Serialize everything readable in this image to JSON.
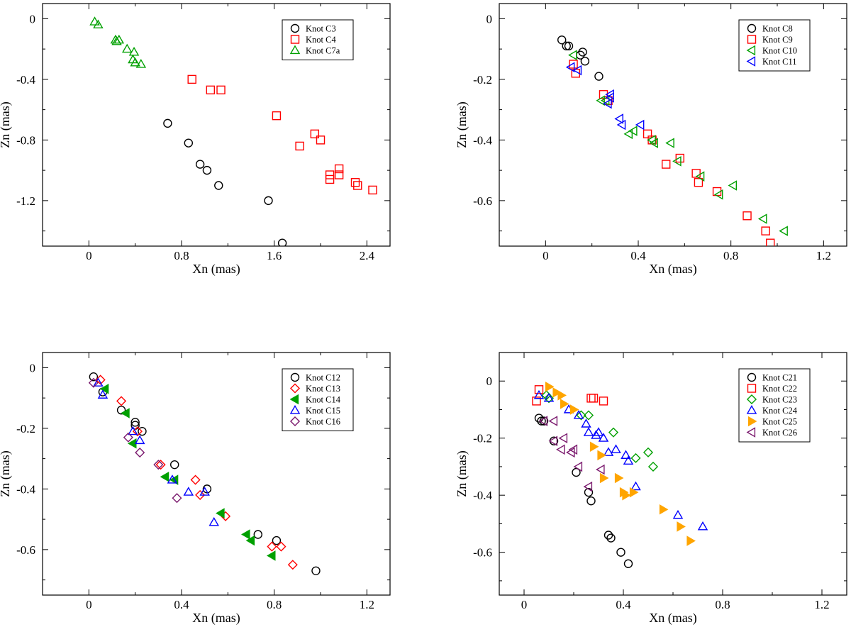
{
  "chart_data": [
    {
      "type": "scatter",
      "xlabel": "Xn (mas)",
      "ylabel": "Zn (mas)",
      "xlim": [
        -0.4,
        2.6
      ],
      "ylim": [
        -1.5,
        0.1
      ],
      "xticks": [
        0,
        0.8,
        1.6,
        2.4
      ],
      "yticks": [
        0,
        -0.4,
        -0.8,
        -1.2
      ],
      "xtick_labels": [
        "0",
        "0.8",
        "1.6",
        "2.4"
      ],
      "ytick_labels": [
        "0",
        "-0.4",
        "-0.8",
        "-1.2"
      ],
      "legend_position": "top-right",
      "series": [
        {
          "name": "Knot C3",
          "marker": "circle",
          "color": "#000000",
          "filled": false,
          "points": [
            [
              0.68,
              -0.69
            ],
            [
              0.86,
              -0.82
            ],
            [
              0.96,
              -0.96
            ],
            [
              1.02,
              -1.0
            ],
            [
              1.12,
              -1.1
            ],
            [
              1.55,
              -1.2
            ],
            [
              1.67,
              -1.48
            ]
          ]
        },
        {
          "name": "Knot C4",
          "marker": "square",
          "color": "#ff0000",
          "filled": false,
          "points": [
            [
              0.89,
              -0.4
            ],
            [
              1.05,
              -0.47
            ],
            [
              1.14,
              -0.47
            ],
            [
              1.62,
              -0.64
            ],
            [
              1.82,
              -0.84
            ],
            [
              1.95,
              -0.76
            ],
            [
              2.0,
              -0.8
            ],
            [
              2.08,
              -1.03
            ],
            [
              2.08,
              -1.06
            ],
            [
              2.16,
              -0.99
            ],
            [
              2.16,
              -1.03
            ],
            [
              2.3,
              -1.08
            ],
            [
              2.32,
              -1.1
            ],
            [
              2.45,
              -1.13
            ]
          ]
        },
        {
          "name": "Knot C7a",
          "marker": "triangle-up",
          "color": "#00a000",
          "filled": false,
          "points": [
            [
              0.05,
              -0.02
            ],
            [
              0.08,
              -0.04
            ],
            [
              0.23,
              -0.14
            ],
            [
              0.24,
              -0.15
            ],
            [
              0.26,
              -0.14
            ],
            [
              0.33,
              -0.2
            ],
            [
              0.39,
              -0.22
            ],
            [
              0.38,
              -0.27
            ],
            [
              0.4,
              -0.29
            ],
            [
              0.45,
              -0.3
            ]
          ]
        }
      ]
    },
    {
      "type": "scatter",
      "xlabel": "Xn (mas)",
      "ylabel": "Zn (mas)",
      "xlim": [
        -0.2,
        1.3
      ],
      "ylim": [
        -0.75,
        0.05
      ],
      "xticks": [
        0,
        0.4,
        0.8,
        1.2
      ],
      "yticks": [
        0,
        -0.2,
        -0.4,
        -0.6
      ],
      "xtick_labels": [
        "0",
        "0.4",
        "0.8",
        "1.2"
      ],
      "ytick_labels": [
        "0",
        "-0.2",
        "-0.4",
        "-0.6"
      ],
      "legend_position": "top-right",
      "series": [
        {
          "name": "Knot C8",
          "marker": "circle",
          "color": "#000000",
          "filled": false,
          "points": [
            [
              0.07,
              -0.07
            ],
            [
              0.09,
              -0.09
            ],
            [
              0.1,
              -0.09
            ],
            [
              0.15,
              -0.12
            ],
            [
              0.16,
              -0.11
            ],
            [
              0.17,
              -0.14
            ],
            [
              0.23,
              -0.19
            ]
          ]
        },
        {
          "name": "Knot C9",
          "marker": "square",
          "color": "#ff0000",
          "filled": false,
          "points": [
            [
              0.12,
              -0.15
            ],
            [
              0.13,
              -0.18
            ],
            [
              0.25,
              -0.25
            ],
            [
              0.27,
              -0.27
            ],
            [
              0.44,
              -0.38
            ],
            [
              0.46,
              -0.4
            ],
            [
              0.52,
              -0.48
            ],
            [
              0.58,
              -0.46
            ],
            [
              0.65,
              -0.51
            ],
            [
              0.66,
              -0.54
            ],
            [
              0.74,
              -0.57
            ],
            [
              0.87,
              -0.65
            ],
            [
              0.95,
              -0.7
            ],
            [
              0.97,
              -0.74
            ]
          ]
        },
        {
          "name": "Knot C10",
          "marker": "triangle-left",
          "color": "#00a000",
          "filled": false,
          "points": [
            [
              0.12,
              -0.12
            ],
            [
              0.24,
              -0.27
            ],
            [
              0.26,
              -0.27
            ],
            [
              0.36,
              -0.38
            ],
            [
              0.38,
              -0.37
            ],
            [
              0.46,
              -0.4
            ],
            [
              0.47,
              -0.41
            ],
            [
              0.54,
              -0.41
            ],
            [
              0.57,
              -0.47
            ],
            [
              0.67,
              -0.52
            ],
            [
              0.75,
              -0.58
            ],
            [
              0.81,
              -0.55
            ],
            [
              0.94,
              -0.66
            ],
            [
              1.03,
              -0.7
            ]
          ]
        },
        {
          "name": "Knot C11",
          "marker": "triangle-left",
          "color": "#0000ff",
          "filled": false,
          "points": [
            [
              0.11,
              -0.16
            ],
            [
              0.14,
              -0.17
            ],
            [
              0.27,
              -0.28
            ],
            [
              0.28,
              -0.25
            ],
            [
              0.28,
              -0.26
            ],
            [
              0.32,
              -0.33
            ],
            [
              0.33,
              -0.35
            ],
            [
              0.41,
              -0.35
            ]
          ]
        }
      ]
    },
    {
      "type": "scatter",
      "xlabel": "Xn (mas)",
      "ylabel": "Zn (mas)",
      "xlim": [
        -0.2,
        1.3
      ],
      "ylim": [
        -0.75,
        0.05
      ],
      "xticks": [
        0,
        0.4,
        0.8,
        1.2
      ],
      "yticks": [
        0,
        -0.2,
        -0.4,
        -0.6
      ],
      "xtick_labels": [
        "0",
        "0.4",
        "0.8",
        "1.2"
      ],
      "ytick_labels": [
        "0",
        "-0.2",
        "-0.4",
        "-0.6"
      ],
      "legend_position": "top-right",
      "series": [
        {
          "name": "Knot C12",
          "marker": "circle",
          "color": "#000000",
          "filled": false,
          "points": [
            [
              0.02,
              -0.03
            ],
            [
              0.06,
              -0.08
            ],
            [
              0.14,
              -0.14
            ],
            [
              0.2,
              -0.18
            ],
            [
              0.2,
              -0.19
            ],
            [
              0.23,
              -0.21
            ],
            [
              0.37,
              -0.32
            ],
            [
              0.51,
              -0.4
            ],
            [
              0.73,
              -0.55
            ],
            [
              0.81,
              -0.57
            ],
            [
              0.98,
              -0.67
            ]
          ]
        },
        {
          "name": "Knot C13",
          "marker": "diamond",
          "color": "#ff0000",
          "filled": false,
          "points": [
            [
              0.05,
              -0.04
            ],
            [
              0.14,
              -0.11
            ],
            [
              0.21,
              -0.21
            ],
            [
              0.31,
              -0.32
            ],
            [
              0.46,
              -0.37
            ],
            [
              0.48,
              -0.42
            ],
            [
              0.59,
              -0.49
            ],
            [
              0.79,
              -0.59
            ],
            [
              0.83,
              -0.59
            ],
            [
              0.88,
              -0.65
            ]
          ]
        },
        {
          "name": "Knot C14",
          "marker": "triangle-left",
          "color": "#00a000",
          "filled": true,
          "points": [
            [
              0.07,
              -0.07
            ],
            [
              0.16,
              -0.15
            ],
            [
              0.19,
              -0.25
            ],
            [
              0.33,
              -0.36
            ],
            [
              0.37,
              -0.37
            ],
            [
              0.57,
              -0.48
            ],
            [
              0.68,
              -0.55
            ],
            [
              0.7,
              -0.57
            ],
            [
              0.79,
              -0.62
            ]
          ]
        },
        {
          "name": "Knot C15",
          "marker": "triangle-up",
          "color": "#0000ff",
          "filled": false,
          "points": [
            [
              0.04,
              -0.05
            ],
            [
              0.06,
              -0.09
            ],
            [
              0.19,
              -0.21
            ],
            [
              0.22,
              -0.24
            ],
            [
              0.36,
              -0.37
            ],
            [
              0.43,
              -0.41
            ],
            [
              0.5,
              -0.41
            ],
            [
              0.54,
              -0.51
            ]
          ]
        },
        {
          "name": "Knot C16",
          "marker": "diamond",
          "color": "#7b1a6e",
          "filled": false,
          "points": [
            [
              0.02,
              -0.05
            ],
            [
              0.17,
              -0.23
            ],
            [
              0.22,
              -0.28
            ],
            [
              0.3,
              -0.32
            ],
            [
              0.38,
              -0.43
            ]
          ]
        }
      ]
    },
    {
      "type": "scatter",
      "xlabel": "Xn (mas)",
      "ylabel": "Zn (mas)",
      "xlim": [
        -0.1,
        1.3
      ],
      "ylim": [
        -0.75,
        0.1
      ],
      "xticks": [
        0,
        0.4,
        0.8,
        1.2
      ],
      "yticks": [
        0,
        -0.2,
        -0.4,
        -0.6
      ],
      "xtick_labels": [
        "0",
        "0.4",
        "0.8",
        "1.2"
      ],
      "ytick_labels": [
        "0",
        "-0.2",
        "-0.4",
        "-0.6"
      ],
      "legend_position": "top-right",
      "series": [
        {
          "name": "Knot C21",
          "marker": "circle",
          "color": "#000000",
          "filled": false,
          "points": [
            [
              0.06,
              -0.13
            ],
            [
              0.07,
              -0.14
            ],
            [
              0.08,
              -0.14
            ],
            [
              0.12,
              -0.21
            ],
            [
              0.21,
              -0.32
            ],
            [
              0.26,
              -0.39
            ],
            [
              0.27,
              -0.42
            ],
            [
              0.34,
              -0.54
            ],
            [
              0.35,
              -0.55
            ],
            [
              0.39,
              -0.6
            ],
            [
              0.42,
              -0.64
            ]
          ]
        },
        {
          "name": "Knot C22",
          "marker": "square",
          "color": "#ff0000",
          "filled": false,
          "points": [
            [
              0.05,
              -0.07
            ],
            [
              0.06,
              -0.03
            ],
            [
              0.27,
              -0.06
            ],
            [
              0.28,
              -0.06
            ],
            [
              0.32,
              -0.07
            ]
          ]
        },
        {
          "name": "Knot C23",
          "marker": "diamond",
          "color": "#00a000",
          "filled": false,
          "points": [
            [
              0.09,
              -0.05
            ],
            [
              0.1,
              -0.06
            ],
            [
              0.23,
              -0.12
            ],
            [
              0.26,
              -0.12
            ],
            [
              0.36,
              -0.18
            ],
            [
              0.45,
              -0.27
            ],
            [
              0.5,
              -0.25
            ],
            [
              0.52,
              -0.3
            ]
          ]
        },
        {
          "name": "Knot C24",
          "marker": "triangle-up",
          "color": "#0000ff",
          "filled": false,
          "points": [
            [
              0.06,
              -0.05
            ],
            [
              0.1,
              -0.06
            ],
            [
              0.18,
              -0.1
            ],
            [
              0.22,
              -0.12
            ],
            [
              0.25,
              -0.15
            ],
            [
              0.26,
              -0.18
            ],
            [
              0.29,
              -0.19
            ],
            [
              0.3,
              -0.18
            ],
            [
              0.32,
              -0.2
            ],
            [
              0.34,
              -0.25
            ],
            [
              0.37,
              -0.24
            ],
            [
              0.41,
              -0.26
            ],
            [
              0.42,
              -0.28
            ],
            [
              0.45,
              -0.37
            ],
            [
              0.62,
              -0.47
            ],
            [
              0.72,
              -0.51
            ]
          ]
        },
        {
          "name": "Knot C25",
          "marker": "triangle-right",
          "color": "#ffa500",
          "filled": true,
          "points": [
            [
              0.1,
              -0.02
            ],
            [
              0.13,
              -0.04
            ],
            [
              0.15,
              -0.05
            ],
            [
              0.16,
              -0.08
            ],
            [
              0.2,
              -0.1
            ],
            [
              0.28,
              -0.23
            ],
            [
              0.31,
              -0.26
            ],
            [
              0.32,
              -0.34
            ],
            [
              0.38,
              -0.34
            ],
            [
              0.4,
              -0.39
            ],
            [
              0.41,
              -0.4
            ],
            [
              0.44,
              -0.39
            ],
            [
              0.56,
              -0.45
            ],
            [
              0.63,
              -0.51
            ],
            [
              0.67,
              -0.56
            ]
          ]
        },
        {
          "name": "Knot C26",
          "marker": "triangle-left",
          "color": "#7b1a6e",
          "filled": false,
          "points": [
            [
              0.08,
              -0.14
            ],
            [
              0.12,
              -0.14
            ],
            [
              0.15,
              -0.24
            ],
            [
              0.16,
              -0.2
            ],
            [
              0.19,
              -0.25
            ],
            [
              0.2,
              -0.24
            ],
            [
              0.22,
              -0.3
            ],
            [
              0.26,
              -0.37
            ],
            [
              0.31,
              -0.31
            ],
            [
              0.12,
              -0.21
            ]
          ]
        }
      ]
    }
  ]
}
